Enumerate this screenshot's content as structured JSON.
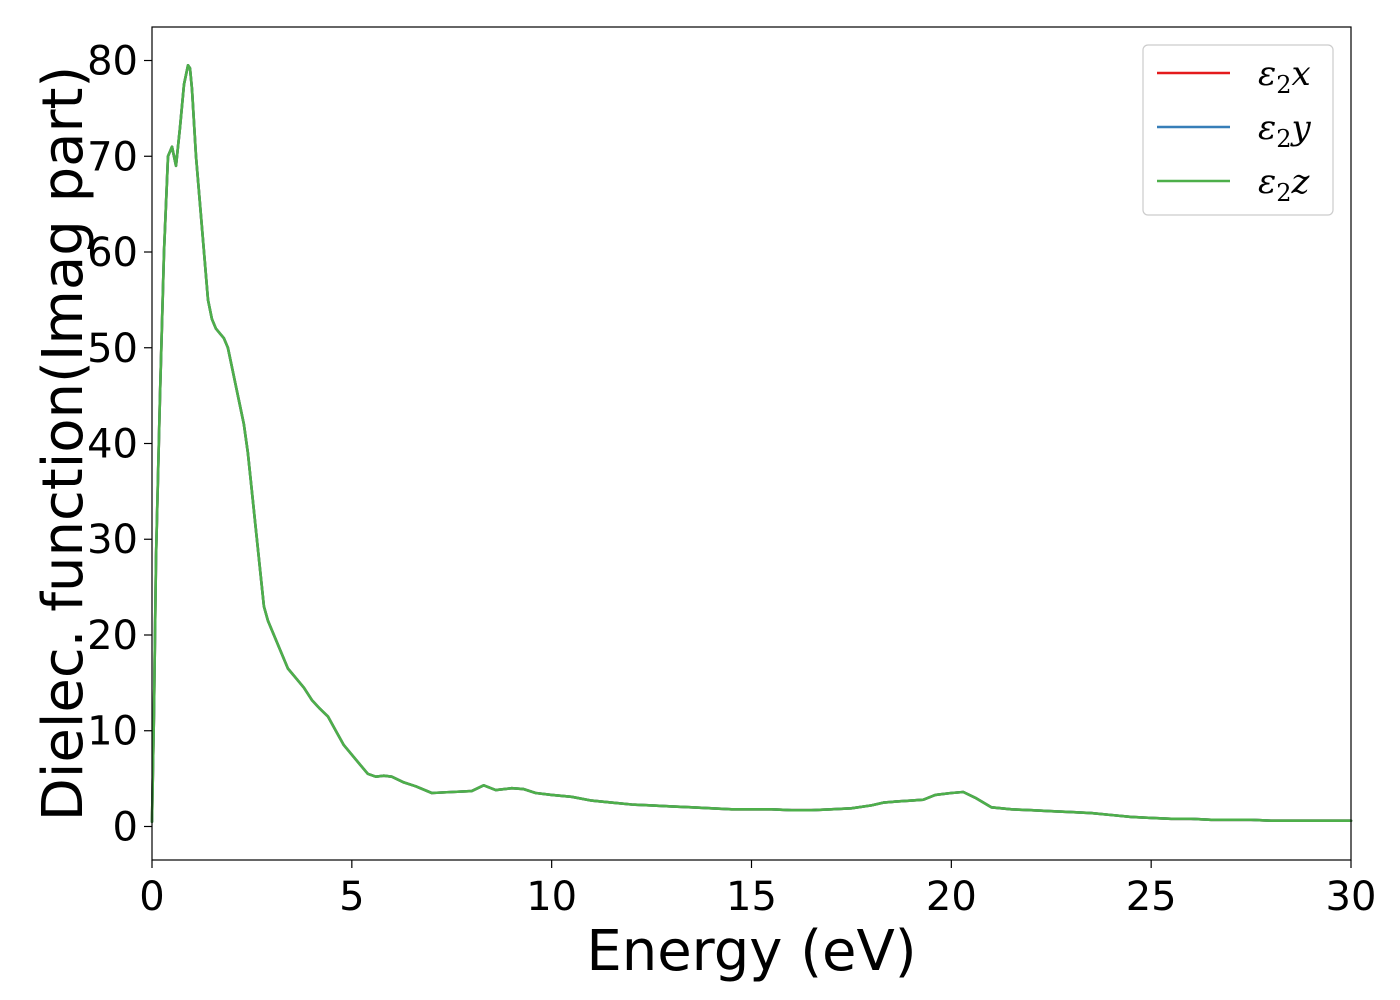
{
  "chart_data": {
    "type": "line",
    "xlabel": "Energy (eV)",
    "ylabel": "Dielec. function(Imag part)",
    "xlim": [
      0,
      30
    ],
    "ylim": [
      -3.5,
      83.5
    ],
    "xticks": [
      0,
      5,
      10,
      15,
      20,
      25,
      30
    ],
    "yticks": [
      0,
      10,
      20,
      30,
      40,
      50,
      60,
      70,
      80
    ],
    "grid": false,
    "legend_position": "top-right",
    "series": [
      {
        "name": "ε2x",
        "legend_main": "ε",
        "legend_sub": "2",
        "legend_tail": "x",
        "color": "#e41a1c"
      },
      {
        "name": "ε2y",
        "legend_main": "ε",
        "legend_sub": "2",
        "legend_tail": "y",
        "color": "#377eb8"
      },
      {
        "name": "ε2z",
        "legend_main": "ε",
        "legend_sub": "2",
        "legend_tail": "z",
        "color": "#4daf4a"
      }
    ],
    "x": [
      0,
      0.05,
      0.1,
      0.2,
      0.3,
      0.4,
      0.5,
      0.55,
      0.6,
      0.7,
      0.8,
      0.9,
      0.95,
      1.0,
      1.1,
      1.2,
      1.3,
      1.4,
      1.5,
      1.6,
      1.7,
      1.8,
      1.9,
      2.0,
      2.1,
      2.2,
      2.3,
      2.4,
      2.5,
      2.6,
      2.7,
      2.8,
      2.9,
      3.0,
      3.2,
      3.4,
      3.6,
      3.8,
      4.0,
      4.2,
      4.4,
      4.6,
      4.8,
      5.0,
      5.2,
      5.4,
      5.6,
      5.8,
      6.0,
      6.3,
      6.6,
      7.0,
      7.5,
      8.0,
      8.3,
      8.6,
      9.0,
      9.3,
      9.6,
      10.0,
      10.5,
      11.0,
      11.5,
      12.0,
      12.5,
      13.0,
      13.5,
      14.0,
      14.5,
      15.0,
      15.5,
      16.0,
      16.5,
      17.0,
      17.5,
      18.0,
      18.3,
      18.6,
      19.0,
      19.3,
      19.6,
      20.0,
      20.3,
      20.6,
      21.0,
      21.5,
      22.0,
      22.5,
      23.0,
      23.5,
      24.0,
      24.5,
      25.0,
      25.5,
      26.0,
      26.5,
      27.0,
      27.5,
      28.0,
      28.5,
      29.0,
      29.5,
      30.0
    ],
    "y": [
      0.5,
      12,
      28,
      45,
      60,
      70,
      71,
      70,
      69,
      73,
      77.5,
      79.5,
      79.2,
      77,
      70,
      65,
      60,
      55,
      53,
      52,
      51.5,
      51,
      50,
      48,
      46,
      44,
      42,
      39,
      35,
      31,
      27,
      23,
      21.5,
      20.5,
      18.5,
      16.5,
      15.5,
      14.5,
      13.2,
      12.3,
      11.5,
      10,
      8.5,
      7.5,
      6.5,
      5.5,
      5.2,
      5.3,
      5.2,
      4.6,
      4.2,
      3.5,
      3.6,
      3.7,
      4.3,
      3.8,
      4.0,
      3.9,
      3.5,
      3.3,
      3.1,
      2.7,
      2.5,
      2.3,
      2.2,
      2.1,
      2.0,
      1.9,
      1.8,
      1.8,
      1.8,
      1.7,
      1.7,
      1.8,
      1.9,
      2.2,
      2.5,
      2.6,
      2.7,
      2.8,
      3.3,
      3.5,
      3.6,
      3.0,
      2.0,
      1.8,
      1.7,
      1.6,
      1.5,
      1.4,
      1.2,
      1.0,
      0.9,
      0.8,
      0.8,
      0.7,
      0.7,
      0.7,
      0.6,
      0.6,
      0.6,
      0.6,
      0.6
    ]
  }
}
